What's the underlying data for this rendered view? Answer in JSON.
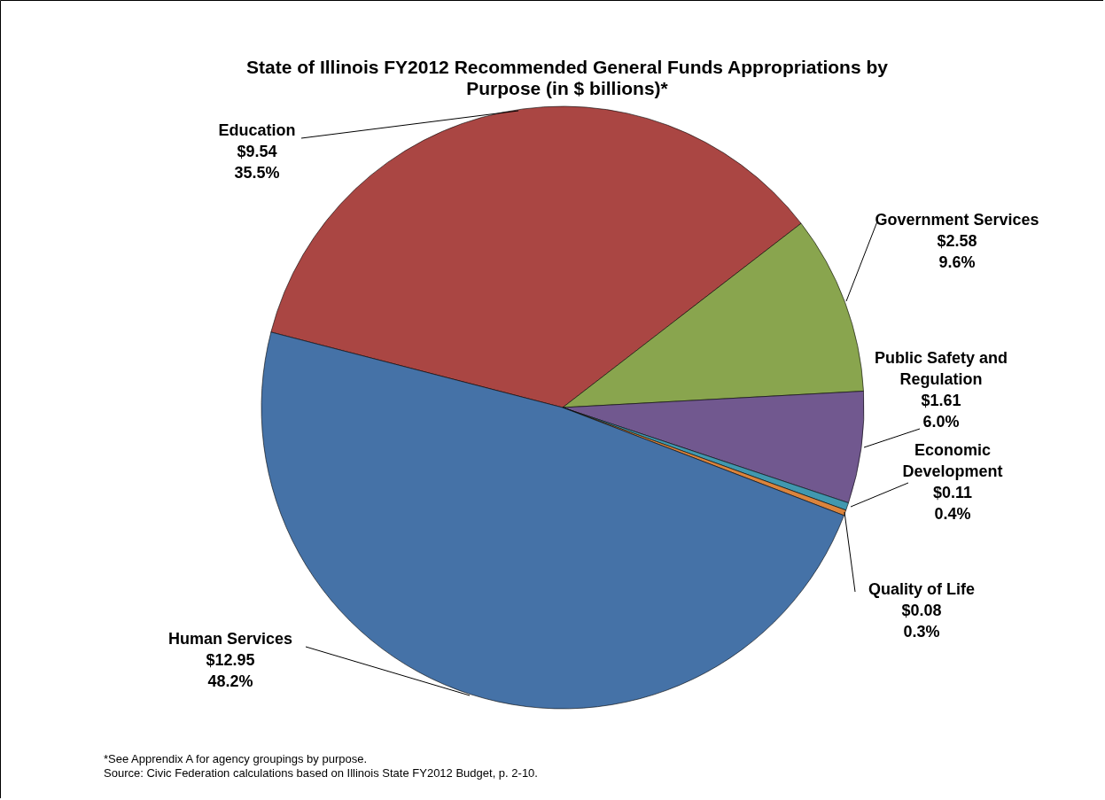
{
  "chart_data": {
    "type": "pie",
    "title": "State of Illinois FY2012 Recommended General Funds Appropriations by Purpose (in $ billions)*",
    "categories": [
      "Education",
      "Government Services",
      "Public Safety and Regulation",
      "Economic Development",
      "Quality of Life",
      "Human Services"
    ],
    "values": [
      9.54,
      2.58,
      1.61,
      0.11,
      0.08,
      12.95
    ],
    "value_labels": [
      "$9.54\n35.5%",
      "$2.58\n9.6%",
      "$1.61\n6.0%",
      "$0.11\n0.4%",
      "$0.08\n0.3%",
      "$12.95\n48.2%"
    ],
    "colors": [
      "#aa4643",
      "#89a54e",
      "#71588f",
      "#4198af",
      "#db843d",
      "#4572a7"
    ],
    "annotations": [
      "*See Apprendix A for agency groupings by purpose.",
      "Source: Civic Federation calculations based on Illinois State FY2012  Budget, p. 2-10."
    ]
  }
}
